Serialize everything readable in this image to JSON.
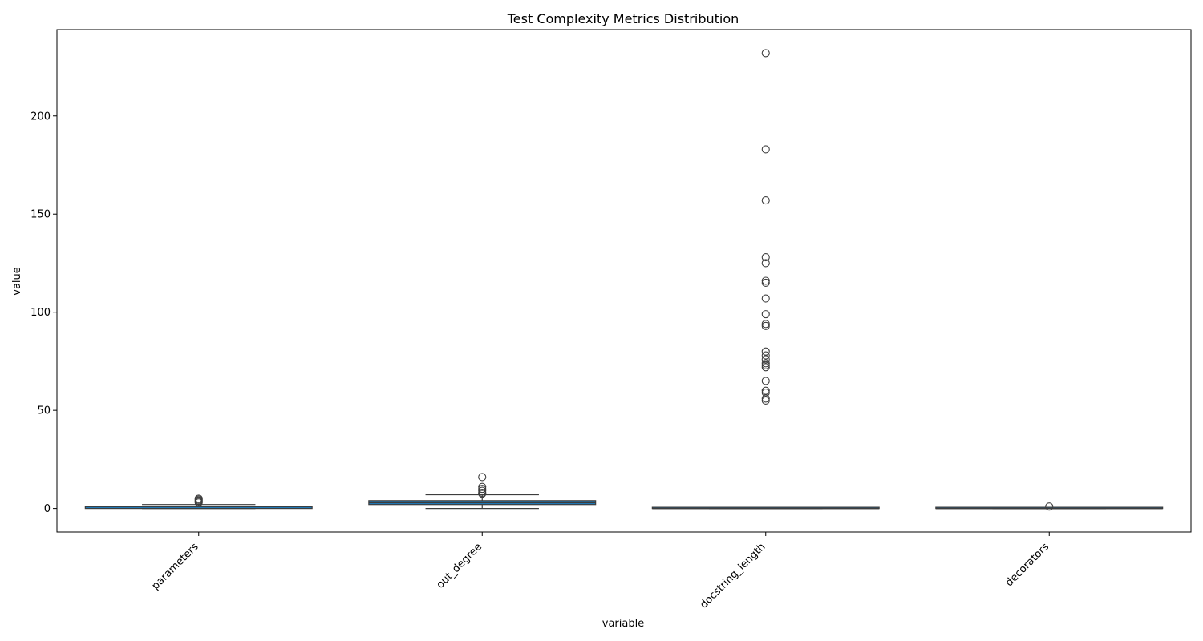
{
  "chart_data": {
    "type": "box",
    "title": "Test Complexity Metrics Distribution",
    "xlabel": "variable",
    "ylabel": "value",
    "ylim": [
      -12,
      244
    ],
    "yticks": [
      0,
      50,
      100,
      150,
      200
    ],
    "grid": false,
    "legend": "none",
    "box_color": "#1f77b4",
    "edge_color": "#3d3d3d",
    "categories": [
      "parameters",
      "out_degree",
      "docstring_length",
      "decorators"
    ],
    "boxes": [
      {
        "category": "parameters",
        "whisker_low": 0,
        "q1": 0,
        "median": 1,
        "q3": 1,
        "whisker_high": 2,
        "outliers": [
          3,
          3.5,
          4,
          4.5,
          5
        ]
      },
      {
        "category": "out_degree",
        "whisker_low": 0,
        "q1": 2,
        "median": 3,
        "q3": 4,
        "whisker_high": 7,
        "outliers": [
          7.5,
          8,
          9,
          10,
          11,
          16
        ]
      },
      {
        "category": "docstring_length",
        "whisker_low": 0,
        "q1": 0,
        "median": 0,
        "q3": 0,
        "whisker_high": 0,
        "outliers": [
          55,
          56,
          59,
          60,
          65,
          72,
          73,
          74,
          76,
          78,
          80,
          93,
          94,
          99,
          107,
          115,
          116,
          125,
          128,
          157,
          183,
          232
        ]
      },
      {
        "category": "decorators",
        "whisker_low": 0,
        "q1": 0,
        "median": 0,
        "q3": 0,
        "whisker_high": 0,
        "outliers": [
          1
        ]
      }
    ]
  }
}
